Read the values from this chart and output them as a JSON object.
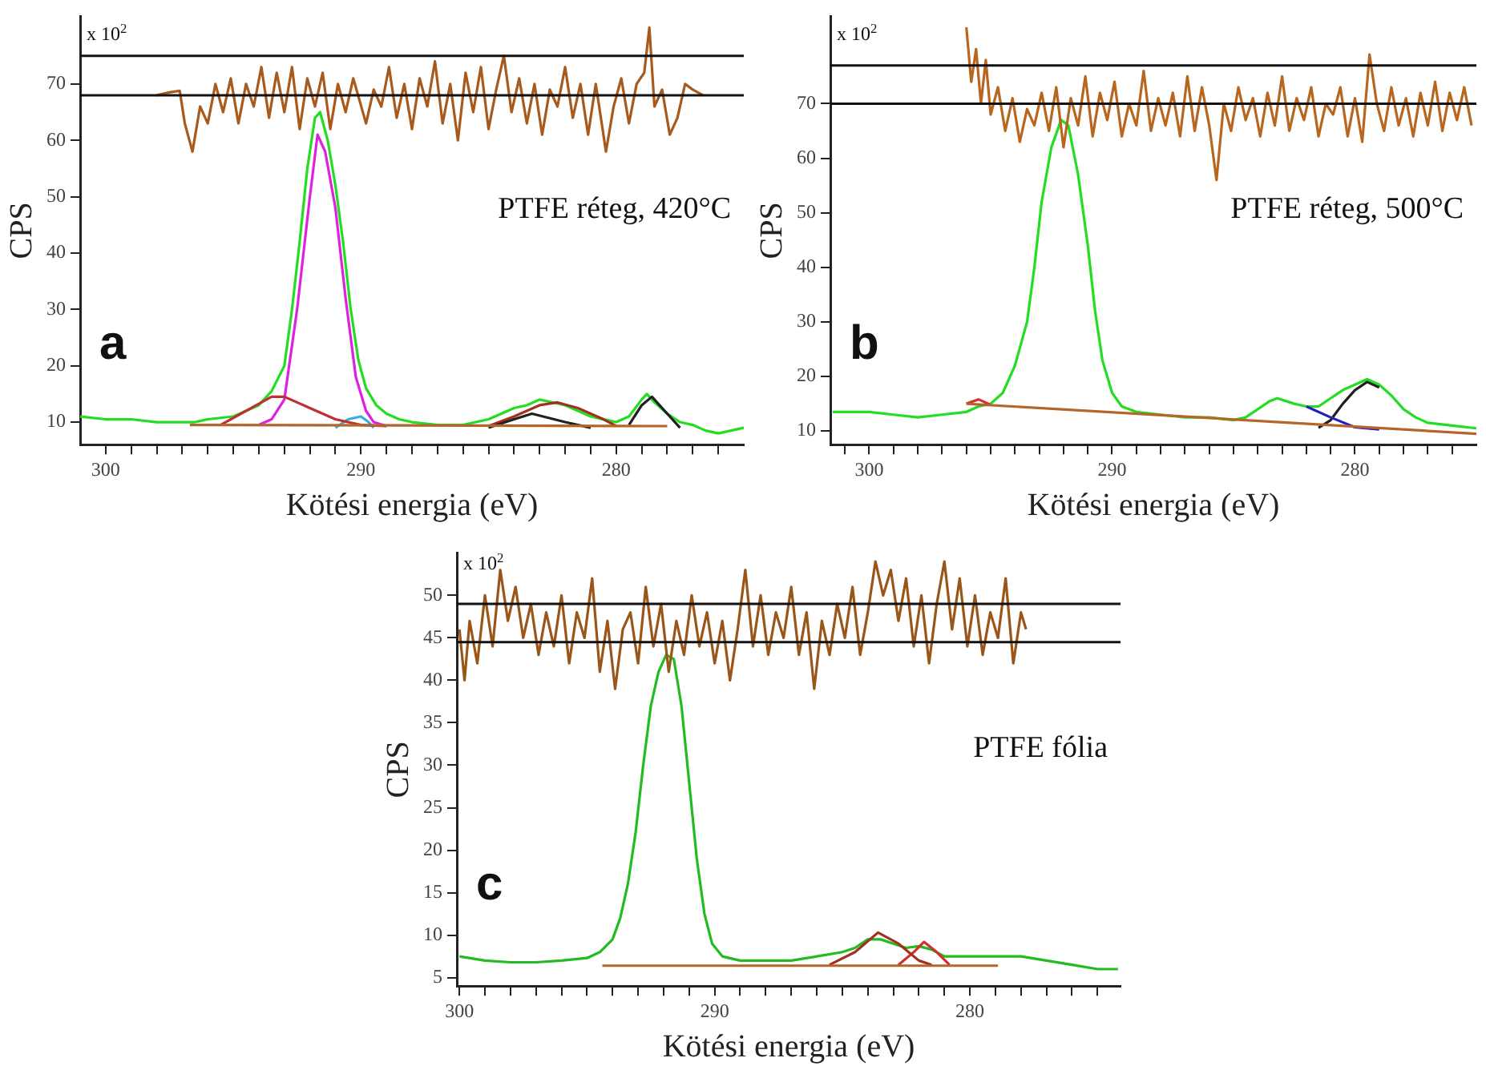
{
  "chart_data": [
    {
      "type": "line",
      "xlabel": "Kötési energia (eV)",
      "ylabel": "CPS",
      "annotations": [
        "x 10$^{2}$",
        "PTFE réteg, 420°C",
        "a"
      ],
      "xlim": [
        301,
        275
      ],
      "ylim": [
        6,
        82
      ],
      "xticks": [
        {
          "value": 276,
          "label": null
        },
        {
          "value": 277,
          "label": null
        },
        {
          "value": 278,
          "label": null
        },
        {
          "value": 279,
          "label": null
        },
        280,
        {
          "value": 281,
          "label": null
        },
        {
          "value": 282,
          "label": null
        },
        {
          "value": 283,
          "label": null
        },
        {
          "value": 284,
          "label": null
        },
        {
          "value": 285,
          "label": null
        },
        {
          "value": 286,
          "label": null
        },
        {
          "value": 287,
          "label": null
        },
        {
          "value": 288,
          "label": null
        },
        {
          "value": 289,
          "label": null
        },
        290,
        {
          "value": 291,
          "label": null
        },
        {
          "value": 292,
          "label": null
        },
        {
          "value": 293,
          "label": null
        },
        {
          "value": 294,
          "label": null
        },
        {
          "value": 295,
          "label": null
        },
        {
          "value": 296,
          "label": null
        },
        {
          "value": 297,
          "label": null
        },
        {
          "value": 298,
          "label": null
        },
        {
          "value": 299,
          "label": null
        },
        300
      ],
      "yticks": [
        10,
        20,
        30,
        40,
        50,
        60,
        70
      ],
      "grid": false,
      "legend": false,
      "marker": "none",
      "line_style": "solid",
      "ref_lines": [
        {
          "axis": "y",
          "value": 68
        },
        {
          "axis": "y",
          "value": 75
        }
      ],
      "series": [
        {
          "color": "#a85a1c",
          "x": [
            298,
            297.5,
            297.1,
            296.9,
            296.6,
            296.3,
            296,
            295.7,
            295.4,
            295.1,
            294.8,
            294.5,
            294.2,
            293.9,
            293.6,
            293.3,
            293,
            292.7,
            292.4,
            292.1,
            291.8,
            291.5,
            291.2,
            290.9,
            290.6,
            290.3,
            289.8,
            289.5,
            289.2,
            288.9,
            288.6,
            288.3,
            288,
            287.7,
            287.4,
            287.1,
            286.8,
            286.5,
            286.2,
            285.9,
            285.6,
            285.3,
            285,
            284.7,
            284.4,
            284.1,
            283.8,
            283.5,
            283.2,
            282.9,
            282.6,
            282.3,
            282,
            281.7,
            281.4,
            281.1,
            280.8,
            280.4,
            280.1,
            279.8,
            279.5,
            279.2,
            278.9,
            278.7,
            278.5,
            278.2,
            277.9,
            277.6,
            277.3,
            277,
            276.6
          ],
          "values": [
            68,
            68.5,
            68.8,
            63,
            58,
            66,
            63,
            70,
            65,
            71,
            63,
            70,
            66,
            73,
            64,
            72,
            65,
            73,
            62,
            71,
            66,
            72,
            62,
            70,
            65,
            71,
            63,
            69,
            66,
            73,
            64,
            70,
            62,
            71,
            66,
            74,
            63,
            70,
            60,
            72,
            65,
            73,
            62,
            69,
            75,
            65,
            71,
            63,
            70,
            61,
            69,
            66,
            73,
            64,
            70,
            61,
            70,
            58,
            66,
            71,
            63,
            70,
            72,
            80,
            66,
            69,
            61,
            64,
            70,
            69,
            68
          ]
        },
        {
          "color": "#b5652a",
          "x": [
            296.7,
            278
          ],
          "values": [
            9.5,
            9.3
          ]
        },
        {
          "color": "#c03030",
          "x": [
            295.5,
            294.5,
            293.5,
            293,
            292,
            291,
            290,
            289
          ],
          "values": [
            9.5,
            12,
            14.5,
            14.5,
            12.5,
            10.5,
            9.5,
            9.3
          ]
        },
        {
          "color": "#e020e0",
          "x": [
            294,
            293.5,
            293,
            292.5,
            292,
            291.7,
            291.4,
            291,
            290.6,
            290.2,
            289.8,
            289.5,
            289
          ],
          "values": [
            9.5,
            10.5,
            14,
            30,
            50,
            61,
            58,
            48,
            32,
            18,
            12,
            10,
            9.3
          ]
        },
        {
          "color": "#30b0e0",
          "x": [
            291,
            290.5,
            290,
            289.7,
            289.5
          ],
          "values": [
            9,
            10.5,
            11,
            10,
            9
          ]
        },
        {
          "color": "#202020",
          "x": [
            285,
            284,
            283.3,
            282,
            281
          ],
          "values": [
            9,
            10.5,
            11.5,
            10,
            9
          ]
        },
        {
          "color": "#a03020",
          "x": [
            285,
            284,
            283,
            282.3,
            281.5,
            280.5,
            280
          ],
          "values": [
            9.3,
            11,
            13,
            13.5,
            12.5,
            10.5,
            9.3
          ]
        },
        {
          "color": "#202020",
          "x": [
            279.5,
            279,
            278.6,
            278,
            277.5
          ],
          "values": [
            9.5,
            13,
            14.5,
            11.5,
            9
          ]
        },
        {
          "color": "#22dd22",
          "x": [
            301,
            300,
            299,
            298,
            297,
            296.5,
            296,
            295,
            294.5,
            294,
            293.5,
            293,
            292.7,
            292.4,
            292.1,
            291.8,
            291.6,
            291.3,
            291,
            290.7,
            290.4,
            290.1,
            289.8,
            289.4,
            289,
            288.5,
            288,
            287,
            286,
            285,
            284,
            283.5,
            283,
            282,
            281.5,
            281,
            280,
            279.5,
            279,
            278.8,
            278.5,
            278,
            277.5,
            277,
            276.5,
            276,
            275.5,
            275
          ],
          "values": [
            11,
            10.5,
            10.5,
            10,
            10,
            10,
            10.5,
            11,
            12,
            13,
            15.5,
            20,
            30,
            42,
            55,
            64,
            65,
            60,
            52,
            42,
            30,
            21,
            16,
            13,
            11.5,
            10.5,
            10,
            9.5,
            9.5,
            10.5,
            12.5,
            13,
            14,
            13,
            12,
            11,
            10,
            11,
            14,
            15,
            13.5,
            11.5,
            10,
            9.5,
            8.5,
            8,
            8.5,
            9
          ]
        }
      ]
    },
    {
      "type": "line",
      "xlabel": "Kötési energia (eV)",
      "ylabel": "CPS",
      "annotations": [
        "x 10$^{2}$",
        "PTFE réteg, 500°C",
        "b"
      ],
      "xlim": [
        301.6,
        275
      ],
      "ylim": [
        7.5,
        86
      ],
      "xticks": [
        {
          "value": 276,
          "label": null
        },
        {
          "value": 277,
          "label": null
        },
        {
          "value": 278,
          "label": null
        },
        {
          "value": 279,
          "label": null
        },
        280,
        {
          "value": 281,
          "label": null
        },
        {
          "value": 282,
          "label": null
        },
        {
          "value": 283,
          "label": null
        },
        {
          "value": 284,
          "label": null
        },
        {
          "value": 285,
          "label": null
        },
        {
          "value": 286,
          "label": null
        },
        {
          "value": 287,
          "label": null
        },
        {
          "value": 288,
          "label": null
        },
        {
          "value": 289,
          "label": null
        },
        290,
        {
          "value": 291,
          "label": null
        },
        {
          "value": 292,
          "label": null
        },
        {
          "value": 293,
          "label": null
        },
        {
          "value": 294,
          "label": null
        },
        {
          "value": 295,
          "label": null
        },
        {
          "value": 296,
          "label": null
        },
        {
          "value": 297,
          "label": null
        },
        {
          "value": 298,
          "label": null
        },
        {
          "value": 299,
          "label": null
        },
        300,
        {
          "value": 301,
          "label": null
        }
      ],
      "yticks": [
        10,
        20,
        30,
        40,
        50,
        60,
        70
      ],
      "grid": false,
      "legend": false,
      "marker": "none",
      "line_style": "solid",
      "ref_lines": [
        {
          "axis": "y",
          "value": 70
        },
        {
          "axis": "y",
          "value": 77
        }
      ],
      "series": [
        {
          "color": "#b8661e",
          "x": [
            296,
            295.8,
            295.6,
            295.4,
            295.2,
            295,
            294.7,
            294.4,
            294.1,
            293.8,
            293.5,
            293.2,
            292.9,
            292.6,
            292.3,
            292,
            291.7,
            291.4,
            291.1,
            290.8,
            290.5,
            290.2,
            289.9,
            289.6,
            289.3,
            289,
            288.7,
            288.4,
            288.1,
            287.8,
            287.5,
            287.2,
            286.9,
            286.6,
            286.3,
            286,
            285.7,
            285.4,
            285.1,
            284.8,
            284.5,
            284.2,
            283.9,
            283.6,
            283.3,
            283,
            282.7,
            282.4,
            282.1,
            281.8,
            281.5,
            281.2,
            280.9,
            280.6,
            280.3,
            280,
            279.7,
            279.4,
            279.1,
            278.8,
            278.5,
            278.2,
            277.9,
            277.6,
            277.3,
            277,
            276.7,
            276.4,
            276.1,
            275.8,
            275.5,
            275.2
          ],
          "values": [
            84,
            74,
            80,
            70,
            78,
            68,
            73,
            65,
            71,
            63,
            69,
            66,
            72,
            65,
            73,
            62,
            71,
            66,
            75,
            64,
            72,
            67,
            74,
            64,
            70,
            66,
            76,
            65,
            71,
            66,
            72,
            64,
            75,
            65,
            73,
            66,
            56,
            70,
            65,
            73,
            67,
            71,
            64,
            72,
            66,
            75,
            65,
            71,
            67,
            73,
            64,
            70,
            68,
            73,
            64,
            71,
            63,
            79,
            70,
            65,
            73,
            66,
            71,
            64,
            72,
            66,
            74,
            65,
            72,
            67,
            73,
            66
          ]
        },
        {
          "color": "#b5652a",
          "x": [
            296,
            275
          ],
          "values": [
            15,
            9.5
          ]
        },
        {
          "color": "#d03030",
          "x": [
            296,
            295.5,
            295
          ],
          "values": [
            15,
            15.8,
            14.8
          ]
        },
        {
          "color": "#2020c0",
          "x": [
            282,
            281,
            280,
            279
          ],
          "values": [
            14.5,
            12.5,
            10.7,
            10.3
          ]
        },
        {
          "color": "#202020",
          "x": [
            281.5,
            281,
            280.5,
            280,
            279.5,
            279
          ],
          "values": [
            10.6,
            12,
            15,
            17.5,
            19,
            18
          ]
        },
        {
          "color": "#22dd22",
          "x": [
            301.5,
            300,
            299,
            298,
            297,
            296,
            295.5,
            295,
            294.5,
            294,
            293.5,
            293.2,
            292.9,
            292.5,
            292.1,
            291.8,
            291.4,
            291,
            290.7,
            290.4,
            290,
            289.6,
            289,
            288,
            287,
            286,
            285,
            284.5,
            284,
            283.5,
            283.2,
            282.5,
            282,
            281.5,
            281,
            280.5,
            280,
            279.5,
            279,
            278.5,
            278,
            277.5,
            277,
            276,
            275
          ],
          "values": [
            13.5,
            13.5,
            13,
            12.5,
            13,
            13.5,
            14.5,
            15,
            17,
            22,
            30,
            40,
            52,
            62,
            67,
            66,
            57,
            44,
            32,
            23,
            17,
            14.5,
            13.5,
            13,
            12.5,
            12.5,
            12,
            12.5,
            14,
            15.5,
            16,
            15,
            14.5,
            14.5,
            16,
            17.5,
            18.5,
            19.5,
            18.5,
            16.5,
            14,
            12.5,
            11.5,
            11,
            10.5
          ]
        }
      ]
    },
    {
      "type": "line",
      "xlabel": "Kötési energia (eV)",
      "ylabel": "CPS",
      "annotations": [
        "x 10$^{2}$",
        "PTFE fólia",
        "c"
      ],
      "xlim": [
        300.1,
        274.1
      ],
      "ylim": [
        4,
        55
      ],
      "xticks": [
        {
          "value": 275,
          "label": null
        },
        {
          "value": 276,
          "label": null
        },
        {
          "value": 277,
          "label": null
        },
        {
          "value": 278,
          "label": null
        },
        {
          "value": 279,
          "label": null
        },
        280,
        {
          "value": 281,
          "label": null
        },
        {
          "value": 282,
          "label": null
        },
        {
          "value": 283,
          "label": null
        },
        {
          "value": 284,
          "label": null
        },
        {
          "value": 285,
          "label": null
        },
        {
          "value": 286,
          "label": null
        },
        {
          "value": 287,
          "label": null
        },
        {
          "value": 288,
          "label": null
        },
        {
          "value": 289,
          "label": null
        },
        290,
        {
          "value": 291,
          "label": null
        },
        {
          "value": 292,
          "label": null
        },
        {
          "value": 293,
          "label": null
        },
        {
          "value": 294,
          "label": null
        },
        {
          "value": 295,
          "label": null
        },
        {
          "value": 296,
          "label": null
        },
        {
          "value": 297,
          "label": null
        },
        {
          "value": 298,
          "label": null
        },
        {
          "value": 299,
          "label": null
        },
        300
      ],
      "yticks": [
        5,
        10,
        15,
        20,
        25,
        30,
        35,
        40,
        45,
        50
      ],
      "grid": false,
      "legend": false,
      "marker": "none",
      "line_style": "solid",
      "ref_lines": [
        {
          "axis": "y",
          "value": 44.5
        },
        {
          "axis": "y",
          "value": 49
        }
      ],
      "series": [
        {
          "color": "#9a5518",
          "x": [
            300,
            299.8,
            299.6,
            299.3,
            299,
            298.7,
            298.4,
            298.1,
            297.8,
            297.5,
            297.2,
            296.9,
            296.6,
            296.3,
            296,
            295.7,
            295.4,
            295.1,
            294.8,
            294.5,
            294.2,
            293.9,
            293.6,
            293.3,
            293,
            292.7,
            292.4,
            292.1,
            291.8,
            291.5,
            291.2,
            290.9,
            290.6,
            290.3,
            290,
            289.7,
            289.4,
            289.1,
            288.8,
            288.5,
            288.2,
            287.9,
            287.6,
            287.3,
            287,
            286.7,
            286.4,
            286.1,
            285.8,
            285.5,
            285.2,
            284.9,
            284.6,
            284.3,
            284,
            283.7,
            283.4,
            283.1,
            282.8,
            282.5,
            282.2,
            281.9,
            281.6,
            281.3,
            281,
            280.7,
            280.4,
            280.1,
            279.8,
            279.5,
            279.2,
            278.9,
            278.6,
            278.3,
            278,
            277.8
          ],
          "values": [
            46,
            40,
            47,
            42,
            50,
            44,
            53,
            47,
            51,
            45,
            49,
            43,
            48,
            44,
            50,
            42,
            48,
            45,
            52,
            41,
            47,
            39,
            46,
            48,
            42,
            51,
            44,
            49,
            41,
            47,
            43,
            50,
            44,
            48,
            42,
            47,
            40,
            46,
            53,
            44,
            50,
            43,
            48,
            45,
            51,
            43,
            48,
            39,
            47,
            43,
            49,
            45,
            51,
            43,
            48,
            54,
            50,
            53,
            47,
            52,
            44,
            50,
            42,
            49,
            54,
            46,
            52,
            44,
            50,
            43,
            48,
            45,
            52,
            42,
            48,
            46
          ]
        },
        {
          "color": "#b5652a",
          "x": [
            294.4,
            278.9
          ],
          "values": [
            6.4,
            6.4
          ]
        },
        {
          "color": "#a03020",
          "x": [
            285.5,
            284.5,
            283.6,
            282.8,
            282,
            281.5
          ],
          "values": [
            6.5,
            8,
            10.3,
            9,
            7,
            6.5
          ]
        },
        {
          "color": "#d03030",
          "x": [
            282.8,
            282.2,
            281.8,
            281.3,
            280.8
          ],
          "values": [
            6.5,
            8,
            9.2,
            8,
            6.5
          ]
        },
        {
          "color": "#22bb22",
          "x": [
            300,
            299,
            298,
            297,
            296,
            295,
            294.5,
            294,
            293.7,
            293.4,
            293.1,
            292.8,
            292.5,
            292.2,
            291.9,
            291.6,
            291.3,
            291,
            290.7,
            290.4,
            290.1,
            289.7,
            289,
            288,
            287,
            286,
            285,
            284.5,
            284,
            283.5,
            283,
            282.5,
            282,
            281.5,
            281,
            280,
            279,
            278,
            277,
            276,
            275,
            274.2
          ],
          "values": [
            7.5,
            7,
            6.8,
            6.8,
            7,
            7.3,
            8,
            9.5,
            12,
            16,
            22,
            30,
            37,
            41,
            43,
            42.5,
            37,
            28,
            19,
            12.5,
            9,
            7.5,
            7,
            7,
            7,
            7.5,
            8,
            8.5,
            9.5,
            9.5,
            9,
            8.5,
            8.7,
            8.3,
            7.5,
            7.5,
            7.5,
            7.5,
            7,
            6.5,
            6,
            6
          ]
        }
      ]
    }
  ]
}
